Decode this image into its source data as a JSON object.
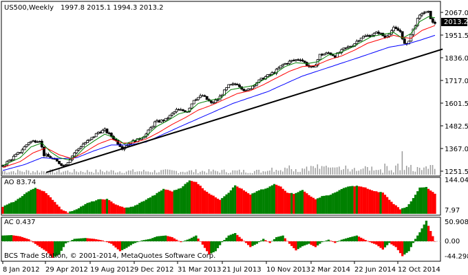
{
  "header": {
    "symbol": "US500,Weekly",
    "ohlc": "1997.8 2015.1 1994.3 2013.2"
  },
  "copyright": "BCS Trade Station, © 2001-2014, MetaQuotes Software Corp.",
  "colors": {
    "bull": "#008000",
    "bear": "#ff0000",
    "ma_fast": "#008000",
    "ma_slow": "#ff0000",
    "ma_long": "#0000ff",
    "volume": "#9b9b9b",
    "trendline": "#000000",
    "current_tag": "#000000"
  },
  "chart_data": [
    {
      "type": "candlestick",
      "title": "US500,Weekly",
      "x_labels": [
        "8 Jan 2012",
        "29 Apr 2012",
        "19 Aug 2012",
        "9 Dec 2012",
        "31 Mar 2013",
        "21 Jul 2013",
        "10 Nov 2013",
        "2 Mar 2014",
        "22 Jun 2014",
        "12 Oct 2014"
      ],
      "y_ticks": [
        "2067.0",
        "1951.5",
        "1836.0",
        "1717.0",
        "1601.5",
        "1482.5",
        "1367.0",
        "1251.5"
      ],
      "ylim": [
        1240,
        2090
      ],
      "current_price": "2013.2",
      "close_path": [
        [
          0,
          1280
        ],
        [
          8,
          1350
        ],
        [
          12,
          1400
        ],
        [
          17,
          1410
        ],
        [
          19,
          1335
        ],
        [
          22,
          1320
        ],
        [
          25,
          1300
        ],
        [
          28,
          1280
        ],
        [
          30,
          1300
        ],
        [
          33,
          1345
        ],
        [
          37,
          1390
        ],
        [
          40,
          1410
        ],
        [
          44,
          1450
        ],
        [
          47,
          1460
        ],
        [
          50,
          1430
        ],
        [
          53,
          1395
        ],
        [
          55,
          1370
        ],
        [
          59,
          1400
        ],
        [
          62,
          1410
        ],
        [
          66,
          1440
        ],
        [
          70,
          1500
        ],
        [
          75,
          1515
        ],
        [
          80,
          1565
        ],
        [
          85,
          1560
        ],
        [
          88,
          1620
        ],
        [
          92,
          1640
        ],
        [
          96,
          1600
        ],
        [
          99,
          1620
        ],
        [
          104,
          1690
        ],
        [
          108,
          1700
        ],
        [
          112,
          1660
        ],
        [
          116,
          1700
        ],
        [
          120,
          1730
        ],
        [
          125,
          1760
        ],
        [
          129,
          1800
        ],
        [
          133,
          1820
        ],
        [
          137,
          1830
        ],
        [
          141,
          1790
        ],
        [
          143,
          1780
        ],
        [
          146,
          1850
        ],
        [
          150,
          1860
        ],
        [
          153,
          1845
        ],
        [
          157,
          1880
        ],
        [
          161,
          1900
        ],
        [
          165,
          1940
        ],
        [
          169,
          1950
        ],
        [
          173,
          1965
        ],
        [
          176,
          1940
        ],
        [
          180,
          1985
        ],
        [
          183,
          1970
        ],
        [
          185,
          1905
        ],
        [
          186,
          1900
        ],
        [
          189,
          1980
        ],
        [
          191,
          2030
        ],
        [
          193,
          2065
        ],
        [
          196,
          2067
        ],
        [
          198,
          2013
        ]
      ],
      "ma_fast_path": [
        [
          0,
          1280
        ],
        [
          8,
          1320
        ],
        [
          13,
          1375
        ],
        [
          18,
          1395
        ],
        [
          22,
          1350
        ],
        [
          26,
          1320
        ],
        [
          30,
          1310
        ],
        [
          34,
          1330
        ],
        [
          38,
          1375
        ],
        [
          42,
          1405
        ],
        [
          47,
          1440
        ],
        [
          52,
          1420
        ],
        [
          56,
          1390
        ],
        [
          60,
          1405
        ],
        [
          66,
          1430
        ],
        [
          71,
          1480
        ],
        [
          76,
          1510
        ],
        [
          81,
          1545
        ],
        [
          86,
          1560
        ],
        [
          90,
          1600
        ],
        [
          95,
          1615
        ],
        [
          100,
          1625
        ],
        [
          105,
          1670
        ],
        [
          110,
          1680
        ],
        [
          115,
          1690
        ],
        [
          120,
          1720
        ],
        [
          125,
          1750
        ],
        [
          130,
          1790
        ],
        [
          135,
          1810
        ],
        [
          140,
          1805
        ],
        [
          145,
          1815
        ],
        [
          150,
          1850
        ],
        [
          155,
          1860
        ],
        [
          160,
          1885
        ],
        [
          165,
          1915
        ],
        [
          170,
          1945
        ],
        [
          175,
          1955
        ],
        [
          180,
          1965
        ],
        [
          184,
          1935
        ],
        [
          188,
          1960
        ],
        [
          192,
          2020
        ],
        [
          196,
          2045
        ],
        [
          199,
          2040
        ]
      ],
      "ma_slow_path": [
        [
          0,
          1270
        ],
        [
          8,
          1300
        ],
        [
          14,
          1345
        ],
        [
          20,
          1370
        ],
        [
          26,
          1335
        ],
        [
          32,
          1315
        ],
        [
          38,
          1350
        ],
        [
          44,
          1390
        ],
        [
          50,
          1415
        ],
        [
          55,
          1395
        ],
        [
          60,
          1395
        ],
        [
          66,
          1415
        ],
        [
          72,
          1450
        ],
        [
          78,
          1490
        ],
        [
          84,
          1525
        ],
        [
          90,
          1565
        ],
        [
          96,
          1590
        ],
        [
          102,
          1620
        ],
        [
          108,
          1650
        ],
        [
          114,
          1665
        ],
        [
          120,
          1695
        ],
        [
          126,
          1730
        ],
        [
          132,
          1765
        ],
        [
          138,
          1790
        ],
        [
          144,
          1795
        ],
        [
          150,
          1825
        ],
        [
          156,
          1845
        ],
        [
          162,
          1875
        ],
        [
          168,
          1910
        ],
        [
          174,
          1930
        ],
        [
          180,
          1950
        ],
        [
          184,
          1940
        ],
        [
          188,
          1935
        ],
        [
          193,
          1975
        ],
        [
          199,
          2000
        ]
      ],
      "ma_long_path": [
        [
          0,
          1255
        ],
        [
          10,
          1285
        ],
        [
          18,
          1320
        ],
        [
          26,
          1315
        ],
        [
          34,
          1320
        ],
        [
          42,
          1355
        ],
        [
          50,
          1385
        ],
        [
          58,
          1385
        ],
        [
          66,
          1400
        ],
        [
          74,
          1440
        ],
        [
          82,
          1480
        ],
        [
          90,
          1520
        ],
        [
          98,
          1560
        ],
        [
          106,
          1600
        ],
        [
          114,
          1630
        ],
        [
          122,
          1660
        ],
        [
          130,
          1700
        ],
        [
          138,
          1740
        ],
        [
          146,
          1770
        ],
        [
          154,
          1800
        ],
        [
          162,
          1830
        ],
        [
          170,
          1860
        ],
        [
          178,
          1890
        ],
        [
          186,
          1905
        ],
        [
          192,
          1925
        ],
        [
          199,
          1950
        ]
      ],
      "trendline": [
        [
          20,
          1245
        ],
        [
          200,
          1880
        ]
      ]
    },
    {
      "type": "bar",
      "title": "AO 83.74",
      "y_ticks": [
        "144.04",
        "7.97"
      ],
      "ylim": [
        0,
        145
      ],
      "last_value": "83.74",
      "path": [
        [
          0,
          30
        ],
        [
          6,
          55
        ],
        [
          11,
          90
        ],
        [
          15,
          110
        ],
        [
          19,
          95
        ],
        [
          23,
          60
        ],
        [
          27,
          20
        ],
        [
          30,
          5
        ],
        [
          34,
          20
        ],
        [
          39,
          45
        ],
        [
          44,
          60
        ],
        [
          48,
          62
        ],
        [
          52,
          40
        ],
        [
          56,
          25
        ],
        [
          60,
          30
        ],
        [
          65,
          55
        ],
        [
          70,
          80
        ],
        [
          74,
          105
        ],
        [
          78,
          95
        ],
        [
          82,
          110
        ],
        [
          86,
          140
        ],
        [
          89,
          135
        ],
        [
          93,
          100
        ],
        [
          96,
          80
        ],
        [
          100,
          60
        ],
        [
          104,
          90
        ],
        [
          107,
          120
        ],
        [
          110,
          105
        ],
        [
          114,
          80
        ],
        [
          118,
          100
        ],
        [
          121,
          105
        ],
        [
          125,
          125
        ],
        [
          128,
          115
        ],
        [
          131,
          90
        ],
        [
          134,
          85
        ],
        [
          138,
          100
        ],
        [
          141,
          80
        ],
        [
          144,
          60
        ],
        [
          147,
          75
        ],
        [
          151,
          80
        ],
        [
          155,
          100
        ],
        [
          159,
          115
        ],
        [
          163,
          118
        ],
        [
          167,
          110
        ],
        [
          171,
          95
        ],
        [
          175,
          90
        ],
        [
          179,
          50
        ],
        [
          183,
          20
        ],
        [
          186,
          30
        ],
        [
          189,
          65
        ],
        [
          192,
          110
        ],
        [
          195,
          112
        ],
        [
          199,
          84
        ]
      ]
    },
    {
      "type": "bar",
      "title": "AC 0.437",
      "y_ticks": [
        "50.908",
        "0.00",
        "-44.298"
      ],
      "ylim": [
        -48,
        55
      ],
      "last_value": "0.437",
      "path": [
        [
          0,
          14
        ],
        [
          4,
          15
        ],
        [
          8,
          12
        ],
        [
          12,
          5
        ],
        [
          16,
          -10
        ],
        [
          20,
          -24
        ],
        [
          23,
          -40
        ],
        [
          26,
          -32
        ],
        [
          29,
          -5
        ],
        [
          33,
          6
        ],
        [
          38,
          8
        ],
        [
          42,
          6
        ],
        [
          46,
          2
        ],
        [
          50,
          -6
        ],
        [
          54,
          -24
        ],
        [
          57,
          -16
        ],
        [
          60,
          -6
        ],
        [
          64,
          2
        ],
        [
          68,
          6
        ],
        [
          71,
          12
        ],
        [
          75,
          14
        ],
        [
          78,
          10
        ],
        [
          82,
          -2
        ],
        [
          86,
          6
        ],
        [
          89,
          14
        ],
        [
          92,
          -8
        ],
        [
          95,
          -32
        ],
        [
          98,
          -24
        ],
        [
          101,
          -2
        ],
        [
          104,
          14
        ],
        [
          107,
          20
        ],
        [
          110,
          6
        ],
        [
          114,
          -14
        ],
        [
          117,
          -6
        ],
        [
          120,
          6
        ],
        [
          123,
          -4
        ],
        [
          126,
          10
        ],
        [
          129,
          14
        ],
        [
          132,
          -6
        ],
        [
          135,
          -22
        ],
        [
          138,
          -12
        ],
        [
          141,
          -6
        ],
        [
          144,
          -14
        ],
        [
          147,
          -2
        ],
        [
          150,
          4
        ],
        [
          153,
          -4
        ],
        [
          156,
          4
        ],
        [
          160,
          10
        ],
        [
          163,
          14
        ],
        [
          166,
          6
        ],
        [
          169,
          -2
        ],
        [
          172,
          -8
        ],
        [
          175,
          -20
        ],
        [
          178,
          -4
        ],
        [
          181,
          -14
        ],
        [
          184,
          -36
        ],
        [
          187,
          -24
        ],
        [
          190,
          6
        ],
        [
          192,
          22
        ],
        [
          195,
          50
        ],
        [
          197,
          25
        ],
        [
          199,
          0
        ]
      ]
    }
  ]
}
